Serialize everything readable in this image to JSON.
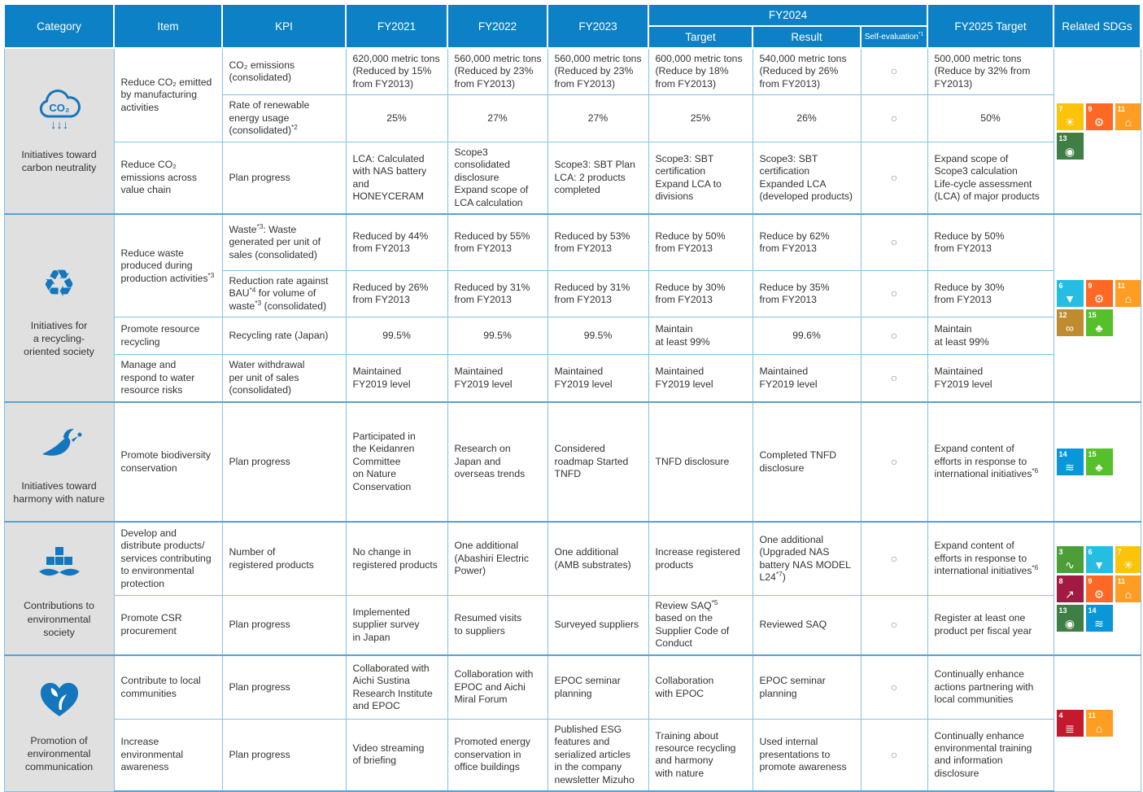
{
  "header": {
    "category": "Category",
    "item": "Item",
    "kpi": "KPI",
    "fy2021": "FY2021",
    "fy2022": "FY2022",
    "fy2023": "FY2023",
    "fy2024": "FY2024",
    "fy2024_target": "Target",
    "fy2024_result": "Result",
    "self_evaluation": "Self-evaluation*1",
    "fy2025_target": "FY2025 Target",
    "related_sdgs": "Related SDGs"
  },
  "marks": {
    "self_evaluation_circle": "○"
  },
  "colors": {
    "header_blue": "#0c81c5",
    "category_gray": "#e0e0e0",
    "grid_blue": "#85c1e3",
    "group_border_blue": "#55a3d4",
    "icon_blue": "#1476bd"
  },
  "groups": [
    {
      "label": "Initiatives toward\ncarbon neutrality",
      "icon": "co2-cloud-icon",
      "rows": [
        {
          "item": "Reduce CO₂ emitted\nby manufacturing\nactivities",
          "kpi": "CO₂ emissions\n(consolidated)",
          "fy2021": "620,000 metric tons\n(Reduced by 15%\nfrom FY2013)",
          "fy2022": "560,000 metric tons\n(Reduced by 23%\nfrom FY2013)",
          "fy2023": "560,000 metric tons\n(Reduced by 23%\nfrom FY2013)",
          "target": "600,000 metric tons\n(Reduce by 18%\nfrom FY2013)",
          "result": "540,000 metric tons\n(Reduced by 26%\nfrom FY2013)",
          "fy2025": "500,000 metric tons\n(Reduce by 32% from\nFY2013)"
        },
        {
          "kpi": "Rate of renewable\nenergy usage\n(consolidated)*2",
          "fy2021": "25%",
          "fy2022": "27%",
          "fy2023": "27%",
          "target": "25%",
          "result": "26%",
          "fy2025": "50%"
        },
        {
          "item": "Reduce CO₂\nemissions across\nvalue chain",
          "kpi": "Plan progress",
          "fy2021": "LCA: Calculated\nwith NAS battery\nand HONEYCERAM",
          "fy2022": "Scope3 consolidated\ndisclosure\nExpand scope of\nLCA calculation",
          "fy2023": "Scope3: SBT Plan\nLCA: 2 products\ncompleted",
          "target": "Scope3: SBT\ncertification\nExpand LCA to\ndivisions",
          "result": "Scope3: SBT\ncertification\nExpanded LCA\n(developed products)",
          "fy2025": "Expand scope of\nScope3 calculation\nLife-cycle assessment\n(LCA) of major products"
        }
      ],
      "sdgs": [
        {
          "num": "7",
          "name": "affordable-and-clean-energy",
          "glyph": "☀",
          "color": "#FCC30B"
        },
        {
          "num": "9",
          "name": "industry-innovation-and-infrastructure",
          "glyph": "⚙",
          "color": "#FD6925"
        },
        {
          "num": "11",
          "name": "sustainable-cities-and-communities",
          "glyph": "⌂",
          "color": "#FD9D24"
        },
        {
          "num": "13",
          "name": "climate-action",
          "glyph": "◉",
          "color": "#3F7E44"
        }
      ]
    },
    {
      "label": "Initiatives for\na recycling-\noriented society",
      "icon": "recycle-icon",
      "rows": [
        {
          "item": "Reduce waste\nproduced during\nproduction activities*3",
          "kpi": "Waste*3: Waste\ngenerated per unit of\nsales (consolidated)",
          "fy2021": "Reduced by 44%\nfrom FY2013",
          "fy2022": "Reduced by 55%\nfrom FY2013",
          "fy2023": "Reduced by 53%\nfrom FY2013",
          "target": "Reduce by 50%\nfrom FY2013",
          "result": "Reduce by 62%\nfrom FY2013",
          "fy2025": "Reduce by 50%\nfrom FY2013"
        },
        {
          "kpi": "Reduction rate against\nBAU*4 for volume of\nwaste*3 (consolidated)",
          "fy2021": "Reduced by 26%\nfrom FY2013",
          "fy2022": "Reduced by 31%\nfrom FY2013",
          "fy2023": "Reduced by 31%\nfrom FY2013",
          "target": "Reduce by 30%\nfrom FY2013",
          "result": "Reduce by 35%\nfrom FY2013",
          "fy2025": "Reduce by 30%\nfrom FY2013"
        },
        {
          "item": "Promote resource\nrecycling",
          "kpi": "Recycling rate (Japan)",
          "fy2021": "99.5%",
          "fy2022": "99.5%",
          "fy2023": "99.5%",
          "target": "Maintain\nat least 99%",
          "result": "99.6%",
          "fy2025": "Maintain\nat least 99%"
        },
        {
          "item": "Manage and\nrespond to water\nresource risks",
          "kpi": "Water withdrawal\nper unit of sales\n(consolidated)",
          "fy2021": "Maintained\nFY2019 level",
          "fy2022": "Maintained\nFY2019 level",
          "fy2023": "Maintained\nFY2019 level",
          "target": "Maintained\nFY2019 level",
          "result": "Maintained\nFY2019 level",
          "fy2025": "Maintained\nFY2019 level"
        }
      ],
      "sdgs": [
        {
          "num": "6",
          "name": "clean-water-and-sanitation",
          "glyph": "▼",
          "color": "#26BDE2"
        },
        {
          "num": "9",
          "name": "industry-innovation-and-infrastructure",
          "glyph": "⚙",
          "color": "#FD6925"
        },
        {
          "num": "11",
          "name": "sustainable-cities-and-communities",
          "glyph": "⌂",
          "color": "#FD9D24"
        },
        {
          "num": "12",
          "name": "responsible-consumption-and-production",
          "glyph": "∞",
          "color": "#BF8B2E"
        },
        {
          "num": "15",
          "name": "life-on-land",
          "glyph": "♣",
          "color": "#56C02B"
        }
      ]
    },
    {
      "label": "Initiatives toward\nharmony with nature",
      "icon": "bird-icon",
      "rows": [
        {
          "item": "Promote biodiversity\nconservation",
          "kpi": "Plan progress",
          "fy2021": "Participated in\nthe Keidanren\nCommittee\non Nature\nConservation",
          "fy2022": "Research on\nJapan and\noverseas trends",
          "fy2023": "Considered\nroadmap Started\nTNFD",
          "target": "TNFD disclosure",
          "result": "Completed TNFD\ndisclosure",
          "fy2025": "Expand content of\nefforts in response to\ninternational initiatives*6"
        }
      ],
      "sdgs": [
        {
          "num": "14",
          "name": "life-below-water",
          "glyph": "≋",
          "color": "#0A97D9"
        },
        {
          "num": "15",
          "name": "life-on-land",
          "glyph": "♣",
          "color": "#56C02B"
        }
      ]
    },
    {
      "label": "Contributions to\nenvironmental\nsociety",
      "icon": "plus-leaves-icon",
      "rows": [
        {
          "item": "Develop and\ndistribute products/\nservices contributing\nto environmental\nprotection",
          "kpi": "Number of\nregistered products",
          "fy2021": "No change in\nregistered products",
          "fy2022": "One additional\n(Abashiri Electric\nPower)",
          "fy2023": "One additional\n(AMB substrates)",
          "target": "Increase registered\nproducts",
          "result": "One additional\n(Upgraded NAS\nbattery NAS MODEL\nL24*7)",
          "fy2025": "Expand content of\nefforts in response to\ninternational initiatives*6"
        },
        {
          "item": "Promote CSR\nprocurement",
          "kpi": "Plan progress",
          "fy2021": "Implemented\nsupplier survey\nin Japan",
          "fy2022": "Resumed visits\nto suppliers",
          "fy2023": "Surveyed suppliers",
          "target": "Review SAQ*5\nbased on the\nSupplier Code of\nConduct",
          "result": "Reviewed SAQ",
          "fy2025": "Register at least one\nproduct per fiscal year"
        }
      ],
      "sdgs": [
        {
          "num": "3",
          "name": "good-health-and-well-being",
          "glyph": "∿",
          "color": "#4C9F38"
        },
        {
          "num": "6",
          "name": "clean-water-and-sanitation",
          "glyph": "▼",
          "color": "#26BDE2"
        },
        {
          "num": "7",
          "name": "affordable-and-clean-energy",
          "glyph": "☀",
          "color": "#FCC30B"
        },
        {
          "num": "8",
          "name": "decent-work-and-economic-growth",
          "glyph": "↗",
          "color": "#A21942"
        },
        {
          "num": "9",
          "name": "industry-innovation-and-infrastructure",
          "glyph": "⚙",
          "color": "#FD6925"
        },
        {
          "num": "11",
          "name": "sustainable-cities-and-communities",
          "glyph": "⌂",
          "color": "#FD9D24"
        },
        {
          "num": "13",
          "name": "climate-action",
          "glyph": "◉",
          "color": "#3F7E44"
        },
        {
          "num": "14",
          "name": "life-below-water",
          "glyph": "≋",
          "color": "#0A97D9"
        }
      ]
    },
    {
      "label": "Promotion of\nenvironmental\ncommunication",
      "icon": "heart-leaf-icon",
      "rows": [
        {
          "item": "Contribute to local\ncommunities",
          "kpi": "Plan progress",
          "fy2021": "Collaborated with\nAichi Sustina\nResearch Institute\nand EPOC",
          "fy2022": "Collaboration with\nEPOC and Aichi\nMiral Forum",
          "fy2023": "EPOC seminar\nplanning",
          "target": "Collaboration\nwith EPOC",
          "result": "EPOC seminar\nplanning",
          "fy2025": "Continually enhance\nactions partnering with\nlocal communities"
        },
        {
          "item": "Increase\nenvironmental\nawareness",
          "kpi": "Plan progress",
          "fy2021": "Video streaming\nof briefing",
          "fy2022": "Promoted energy\nconservation in\noffice buildings",
          "fy2023": "Published ESG\nfeatures and\nserialized articles\nin the company\nnewsletter Mizuho",
          "target": "Training about\nresource recycling\nand harmony\nwith nature",
          "result": "Used internal\npresentations to\npromote awareness",
          "fy2025": "Continually enhance\nenvironmental training\nand information\ndisclosure"
        }
      ],
      "sdgs": [
        {
          "num": "4",
          "name": "quality-education",
          "glyph": "≣",
          "color": "#C5192D"
        },
        {
          "num": "11",
          "name": "sustainable-cities-and-communities",
          "glyph": "⌂",
          "color": "#FD9D24"
        }
      ]
    }
  ]
}
